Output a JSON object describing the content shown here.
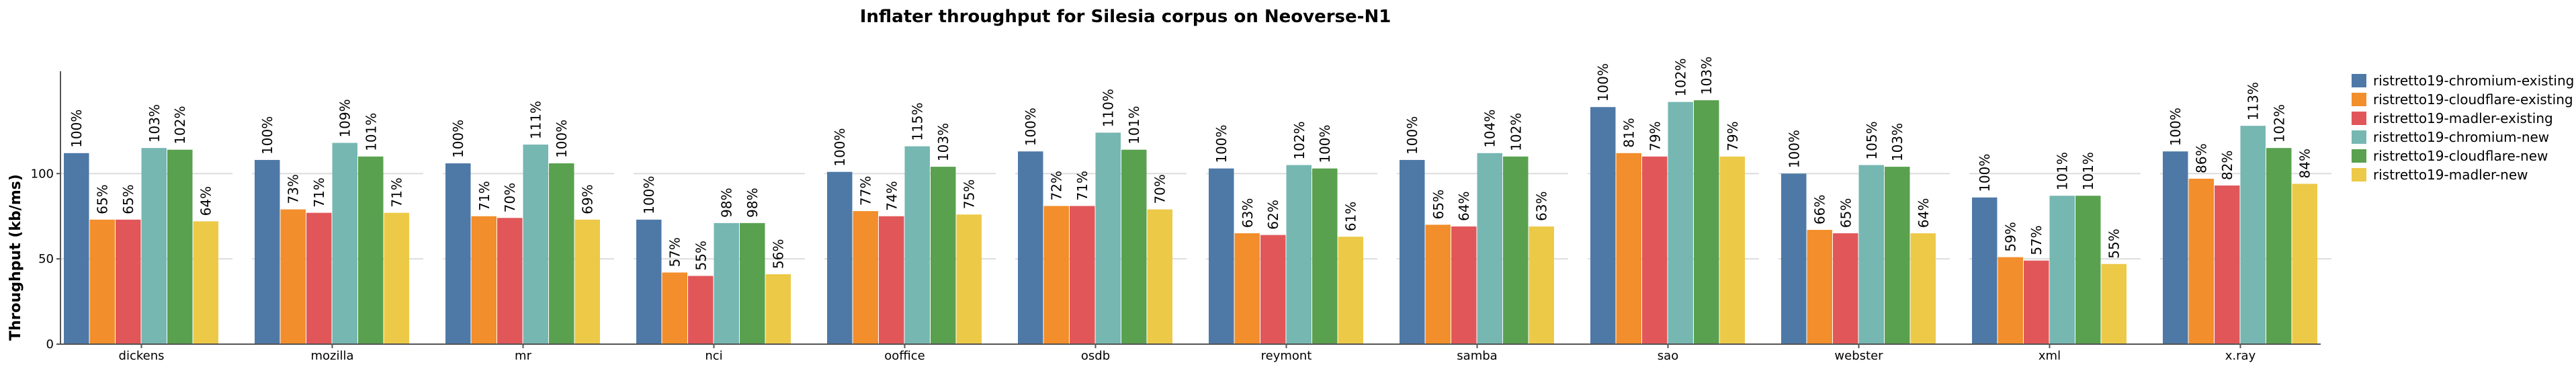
{
  "chart_data": {
    "type": "bar",
    "title": "Inflater throughput for Silesia corpus on Neoverse-N1",
    "xlabel": "",
    "ylabel": "Throughput (kb/ms)",
    "ylim": [
      0,
      160
    ],
    "yticks": [
      0,
      50,
      100
    ],
    "grid": true,
    "legend_position": "top-right",
    "categories": [
      "dickens",
      "mozilla",
      "mr",
      "nci",
      "ooffice",
      "osdb",
      "reymont",
      "samba",
      "sao",
      "webster",
      "xml",
      "x.ray"
    ],
    "series": [
      {
        "name": "ristretto19-chromium-existing",
        "color": "#4e79a7",
        "values": [
          112,
          108,
          106,
          73,
          101,
          113,
          103,
          108,
          139,
          100,
          86,
          113
        ],
        "labels": [
          "100%",
          "100%",
          "100%",
          "100%",
          "100%",
          "100%",
          "100%",
          "100%",
          "100%",
          "100%",
          "100%",
          "100%"
        ]
      },
      {
        "name": "ristretto19-cloudflare-existing",
        "color": "#f28e2b",
        "values": [
          73,
          79,
          75,
          42,
          78,
          81,
          65,
          70,
          112,
          67,
          51,
          97
        ],
        "labels": [
          "65%",
          "73%",
          "71%",
          "57%",
          "77%",
          "72%",
          "63%",
          "65%",
          "81%",
          "66%",
          "59%",
          "86%"
        ]
      },
      {
        "name": "ristretto19-madler-existing",
        "color": "#e15759",
        "values": [
          73,
          77,
          74,
          40,
          75,
          81,
          64,
          69,
          110,
          65,
          49,
          93
        ],
        "labels": [
          "65%",
          "71%",
          "70%",
          "55%",
          "74%",
          "71%",
          "62%",
          "64%",
          "79%",
          "65%",
          "57%",
          "82%"
        ]
      },
      {
        "name": "ristretto19-chromium-new",
        "color": "#76b7b2",
        "values": [
          115,
          118,
          117,
          71,
          116,
          124,
          105,
          112,
          142,
          105,
          87,
          128
        ],
        "labels": [
          "103%",
          "109%",
          "111%",
          "98%",
          "115%",
          "110%",
          "102%",
          "104%",
          "102%",
          "105%",
          "101%",
          "113%"
        ]
      },
      {
        "name": "ristretto19-cloudflare-new",
        "color": "#59a14f",
        "values": [
          114,
          110,
          106,
          71,
          104,
          114,
          103,
          110,
          143,
          104,
          87,
          115
        ],
        "labels": [
          "102%",
          "101%",
          "100%",
          "98%",
          "103%",
          "101%",
          "100%",
          "102%",
          "103%",
          "103%",
          "101%",
          "102%"
        ]
      },
      {
        "name": "ristretto19-madler-new",
        "color": "#edc948",
        "values": [
          72,
          77,
          73,
          41,
          76,
          79,
          63,
          69,
          110,
          65,
          47,
          94
        ],
        "labels": [
          "64%",
          "71%",
          "69%",
          "56%",
          "75%",
          "70%",
          "61%",
          "63%",
          "79%",
          "64%",
          "55%",
          "84%"
        ]
      }
    ]
  }
}
